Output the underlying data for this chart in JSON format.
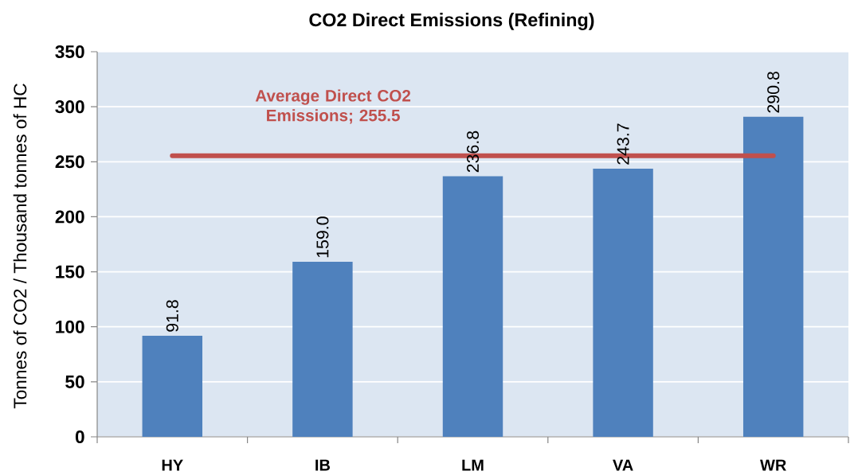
{
  "chart_data": {
    "type": "bar",
    "title": "CO2 Direct Emissions (Refining)",
    "ylabel": "Tonnes of CO2 / Thousand tonnes of HC",
    "categories": [
      "HY",
      "IB",
      "LM",
      "VA",
      "WR"
    ],
    "values": [
      91.8,
      159.0,
      236.8,
      243.7,
      290.8
    ],
    "value_labels": [
      "91.8",
      "159.0",
      "236.8",
      "243.7",
      "290.8"
    ],
    "color": "#4f81bd",
    "ylim": [
      0,
      350
    ],
    "yticks": [
      0,
      50,
      100,
      150,
      200,
      250,
      300,
      350
    ],
    "grid": "y",
    "ref_lines": [
      {
        "axis": "y",
        "value": 255.5,
        "label": "Average Direct CO2 Emissions; 255.5",
        "color": "#c0504d"
      }
    ]
  }
}
